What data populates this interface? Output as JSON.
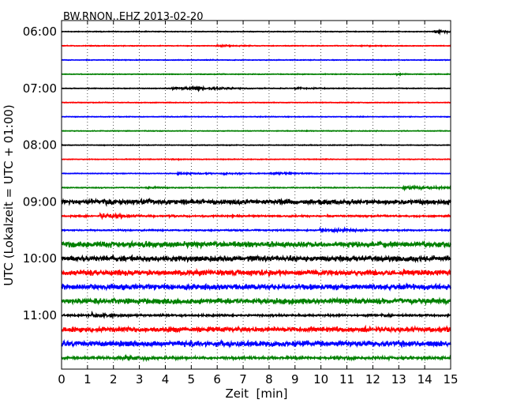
{
  "chart_data": {
    "type": "line",
    "title": "BW.RNON..EHZ 2013-02-20",
    "xlabel": "Zeit  [min]",
    "ylabel": "UTC (Lokalzeit = UTC + 01:00)",
    "xlim": [
      0,
      15
    ],
    "x_ticks": [
      "0",
      "1",
      "2",
      "3",
      "4",
      "5",
      "6",
      "7",
      "8",
      "9",
      "10",
      "11",
      "12",
      "13",
      "14",
      "15"
    ],
    "y_tick_labels": [
      "06:00",
      "07:00",
      "08:00",
      "09:00",
      "10:00",
      "11:00"
    ],
    "y_tick_hours": [
      0,
      4,
      8,
      12,
      16,
      20
    ],
    "grid": "vertical dotted at each minute",
    "colors": [
      "#000000",
      "#ff0000",
      "#0000ff",
      "#008000"
    ],
    "series": [
      {
        "time": "06:00",
        "amplitude": 0.5,
        "events": [
          {
            "minute": 14.4,
            "amplitude": 2.5
          }
        ]
      },
      {
        "time": "06:15",
        "amplitude": 0.5,
        "events": [
          {
            "minute": 6.0,
            "amplitude": 1.5
          },
          {
            "minute": 11.5,
            "amplitude": 1.0
          }
        ]
      },
      {
        "time": "06:30",
        "amplitude": 0.5,
        "events": []
      },
      {
        "time": "06:45",
        "amplitude": 0.5,
        "events": [
          {
            "minute": 12.9,
            "amplitude": 1.0
          }
        ]
      },
      {
        "time": "07:00",
        "amplitude": 0.5,
        "events": [
          {
            "minute": 4.3,
            "amplitude": 2.5
          },
          {
            "minute": 5.0,
            "amplitude": 3.5
          },
          {
            "minute": 9.0,
            "amplitude": 1.5
          }
        ]
      },
      {
        "time": "07:15",
        "amplitude": 0.5,
        "events": []
      },
      {
        "time": "07:30",
        "amplitude": 0.5,
        "events": []
      },
      {
        "time": "07:45",
        "amplitude": 0.5,
        "events": []
      },
      {
        "time": "08:00",
        "amplitude": 0.5,
        "events": []
      },
      {
        "time": "08:15",
        "amplitude": 0.5,
        "events": [
          {
            "minute": 4.3,
            "amplitude": 1.0
          }
        ]
      },
      {
        "time": "08:30",
        "amplitude": 0.5,
        "events": [
          {
            "minute": 4.5,
            "amplitude": 2.0
          },
          {
            "minute": 6.2,
            "amplitude": 1.5
          },
          {
            "minute": 8.1,
            "amplitude": 2.0
          }
        ]
      },
      {
        "time": "08:45",
        "amplitude": 0.6,
        "events": [
          {
            "minute": 3.3,
            "amplitude": 1.5
          },
          {
            "minute": 13.2,
            "amplitude": 4.0
          }
        ]
      },
      {
        "time": "09:00",
        "amplitude": 4.0,
        "events": []
      },
      {
        "time": "09:15",
        "amplitude": 1.2,
        "events": [
          {
            "minute": 1.5,
            "amplitude": 4.5
          }
        ]
      },
      {
        "time": "09:30",
        "amplitude": 1.0,
        "events": [
          {
            "minute": 10.0,
            "amplitude": 4.0
          }
        ]
      },
      {
        "time": "09:45",
        "amplitude": 4.5,
        "events": []
      },
      {
        "time": "10:00",
        "amplitude": 4.5,
        "events": []
      },
      {
        "time": "10:15",
        "amplitude": 4.5,
        "events": []
      },
      {
        "time": "10:30",
        "amplitude": 4.5,
        "events": []
      },
      {
        "time": "10:45",
        "amplitude": 4.5,
        "events": []
      },
      {
        "time": "11:00",
        "amplitude": 1.5,
        "events": [
          {
            "minute": 1.2,
            "amplitude": 4.5
          }
        ]
      },
      {
        "time": "11:15",
        "amplitude": 4.0,
        "events": []
      },
      {
        "time": "11:30",
        "amplitude": 4.5,
        "events": []
      },
      {
        "time": "11:45",
        "amplitude": 2.0,
        "events": [
          {
            "minute": 2.5,
            "amplitude": 4.5
          }
        ]
      }
    ]
  }
}
